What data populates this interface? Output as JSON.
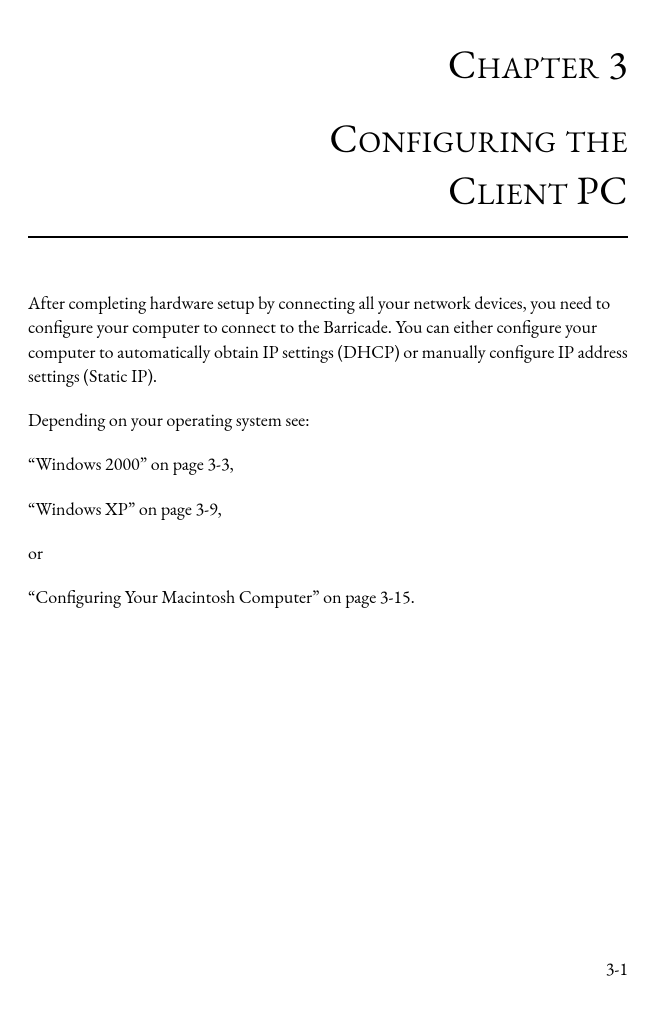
{
  "colors": {
    "text": "#000000",
    "background": "#ffffff",
    "rule": "#000000"
  },
  "typography": {
    "heading_font": "Garamond",
    "body_font": "Garamond",
    "heading_fontsize_pt": 30,
    "body_fontsize_pt": 13,
    "heading_style": "small-caps-like",
    "body_line_height": 1.35
  },
  "heading": {
    "chapter": {
      "word1_big": "C",
      "word1_small": "HAPTER",
      "number": "3"
    },
    "title": {
      "line1": {
        "w1_big": "C",
        "w1_small": "ONFIGURING",
        "w2_small": "THE"
      },
      "line2": {
        "w1_big": "C",
        "w1_small": "LIENT",
        "w2_big": "PC"
      }
    }
  },
  "body": {
    "p1": "After completing hardware setup by connecting all your network devices, you need to configure your computer to connect to the Barricade. You can either configure your computer to automatically obtain IP settings (DHCP) or manually configure IP address settings (Static IP).",
    "p2": "Depending on your operating system see:",
    "p3": "“Windows 2000” on page 3-3,",
    "p4": "“Windows XP” on page 3-9,",
    "p5": "or",
    "p6": "“Configuring Your Macintosh Computer” on page 3-15."
  },
  "page_number": "3-1"
}
